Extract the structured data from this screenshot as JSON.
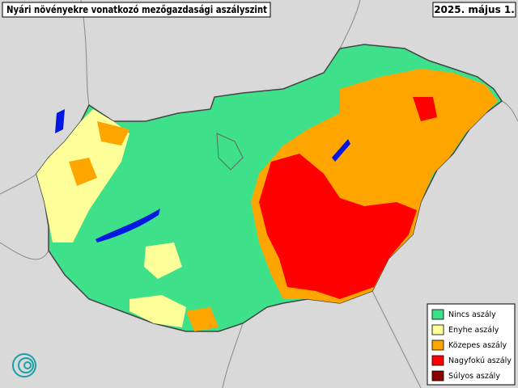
{
  "title": "Nyári növényekre vonatkozó mezőgazdasági aszályszint",
  "date": "2025. május 1.",
  "legend": {
    "items": [
      {
        "label": "Nincs aszály",
        "color": "#3ee08a"
      },
      {
        "label": "Enyhe aszály",
        "color": "#ffff99"
      },
      {
        "label": "Közepes aszály",
        "color": "#ffa500"
      },
      {
        "label": "Nagyfokú aszály",
        "color": "#ff0000"
      },
      {
        "label": "Súlyos aszály",
        "color": "#8b0000"
      }
    ]
  }
}
